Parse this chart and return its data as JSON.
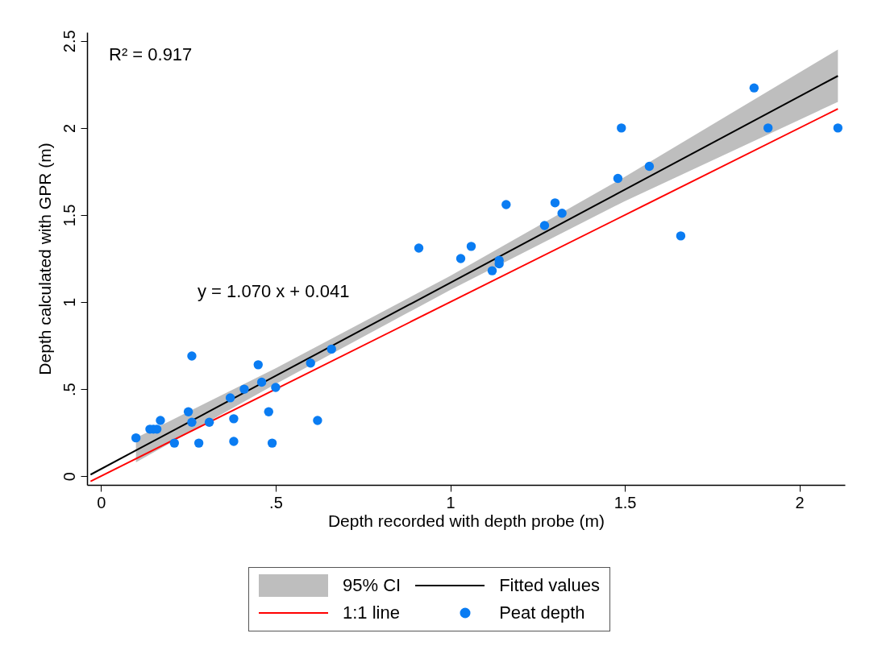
{
  "chart_data": {
    "type": "scatter",
    "xlabel": "Depth recorded with depth probe (m)",
    "ylabel": "Depth calculated with GPR (m)",
    "xlim": [
      -0.04,
      2.13
    ],
    "ylim": [
      -0.05,
      2.55
    ],
    "xticks": [
      0,
      {
        "value": 0.5,
        "label": ".5"
      },
      1,
      1.5,
      2
    ],
    "yticks": [
      0,
      {
        "value": 0.5,
        "label": ".5"
      },
      1,
      1.5,
      2,
      2.5
    ],
    "grid": false,
    "legend": "bottom",
    "annotations": [
      "R² = 0.917",
      "y = 1.070  x + 0.041",
      "95% CI"
    ],
    "series": [
      {
        "name": "Fitted values",
        "type": "line",
        "color": "#000000",
        "x": [
          -0.03,
          0.1,
          0.5,
          1,
          1.5,
          2.11
        ],
        "values": [
          0.009,
          0.148,
          0.576,
          1.111,
          1.646,
          2.299
        ],
        "lower": [
          null,
          0.08,
          0.53,
          1.07,
          1.58,
          2.15
        ],
        "upper": [
          null,
          0.22,
          0.62,
          1.15,
          1.72,
          2.45
        ]
      },
      {
        "name": "1:1 line",
        "type": "line",
        "color": "#ff0000",
        "x": [
          -0.03,
          2.11
        ],
        "values": [
          -0.03,
          2.11
        ]
      },
      {
        "name": "Peat depth",
        "color": "#0a7cf2",
        "x": [
          0.1,
          0.14,
          0.15,
          0.16,
          0.17,
          0.21,
          0.25,
          0.26,
          0.26,
          0.28,
          0.31,
          0.37,
          0.38,
          0.38,
          0.41,
          0.45,
          0.46,
          0.48,
          0.49,
          0.5,
          0.6,
          0.62,
          0.66,
          0.91,
          1.03,
          1.06,
          1.12,
          1.14,
          1.14,
          1.16,
          1.27,
          1.3,
          1.32,
          1.48,
          1.49,
          1.57,
          1.66,
          1.87,
          1.91,
          2.11
        ],
        "values": [
          0.22,
          0.27,
          0.27,
          0.27,
          0.32,
          0.19,
          0.37,
          0.31,
          0.69,
          0.19,
          0.31,
          0.45,
          0.33,
          0.2,
          0.5,
          0.64,
          0.54,
          0.37,
          0.19,
          0.51,
          0.65,
          0.32,
          0.73,
          1.31,
          1.25,
          1.32,
          1.18,
          1.22,
          1.24,
          1.56,
          1.44,
          1.57,
          1.51,
          1.71,
          2.0,
          1.78,
          1.38,
          2.23,
          2.0,
          2.0
        ]
      }
    ]
  }
}
